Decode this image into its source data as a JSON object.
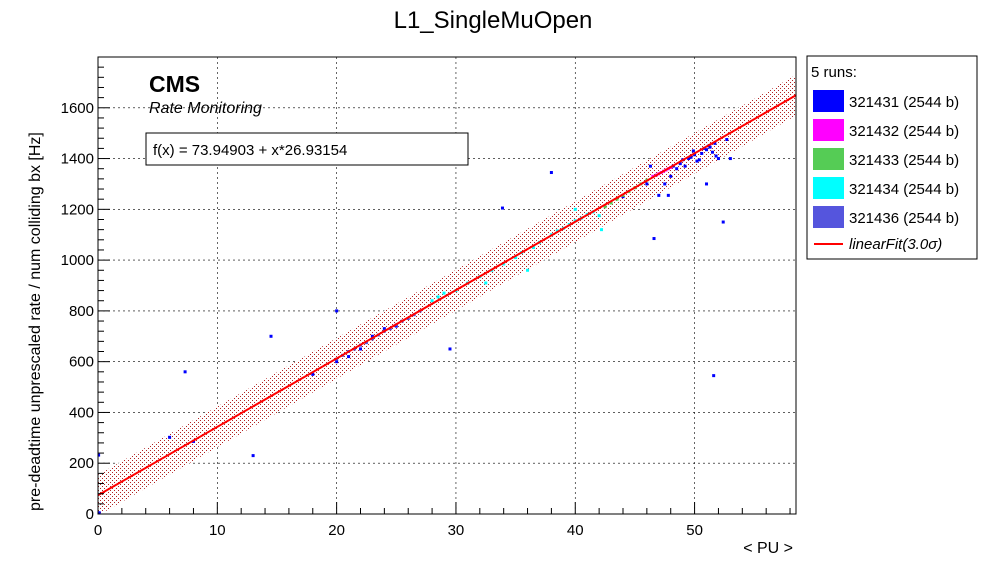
{
  "chart_data": {
    "type": "scatter",
    "title": "L1_SingleMuOpen",
    "xlabel": "< PU >",
    "ylabel": "pre-deadtime unprescaled rate / num colliding bx [Hz]",
    "xlim": [
      0,
      58.5
    ],
    "ylim": [
      0,
      1800
    ],
    "x_ticks": [
      0,
      10,
      20,
      30,
      40,
      50
    ],
    "y_ticks": [
      0,
      200,
      400,
      600,
      800,
      1000,
      1200,
      1400,
      1600
    ],
    "grid": true,
    "legend_position": "outside-right",
    "cms_label": "CMS",
    "cms_sublabel": "Rate Monitoring",
    "fit_box_text": "f(x) = 73.94903 + x*26.93154",
    "legend": {
      "header": "5 runs:",
      "fit_label_prefix": "linearFit(3.0",
      "fit_label_sigma": "σ",
      "fit_label_suffix": ")"
    },
    "fit": {
      "intercept": 73.94903,
      "slope": 26.93154,
      "band_halfwidth": 80,
      "color": "#ff0000",
      "band_color": "#b22222"
    },
    "series": [
      {
        "name": "321431 (2544 b)",
        "color": "#0000ff",
        "points": [
          [
            0.1,
            5
          ],
          [
            0.05,
            232
          ],
          [
            6.0,
            302
          ],
          [
            7.3,
            560
          ],
          [
            8.0,
            286
          ],
          [
            13.0,
            230
          ],
          [
            14.5,
            700
          ],
          [
            18.0,
            550
          ],
          [
            20.0,
            800
          ],
          [
            20.0,
            600
          ],
          [
            21.0,
            620
          ],
          [
            22.0,
            650
          ],
          [
            23.0,
            700
          ],
          [
            24.0,
            730
          ],
          [
            25.0,
            740
          ],
          [
            29.5,
            650
          ],
          [
            33.9,
            1205
          ],
          [
            38.0,
            1345
          ],
          [
            44.0,
            1250
          ],
          [
            46.0,
            1300
          ],
          [
            46.3,
            1370
          ],
          [
            46.6,
            1085
          ],
          [
            47.0,
            1255
          ],
          [
            47.5,
            1300
          ],
          [
            47.8,
            1255
          ],
          [
            48.0,
            1330
          ],
          [
            48.2,
            1370
          ],
          [
            48.5,
            1360
          ],
          [
            48.8,
            1380
          ],
          [
            49.0,
            1395
          ],
          [
            49.2,
            1370
          ],
          [
            49.5,
            1400
          ],
          [
            49.7,
            1405
          ],
          [
            49.9,
            1430
          ],
          [
            50.0,
            1415
          ],
          [
            50.2,
            1390
          ],
          [
            50.4,
            1395
          ],
          [
            50.6,
            1420
          ],
          [
            50.8,
            1440
          ],
          [
            51.0,
            1435
          ],
          [
            51.0,
            1300
          ],
          [
            51.2,
            1450
          ],
          [
            51.3,
            1445
          ],
          [
            51.5,
            1425
          ],
          [
            51.6,
            545
          ],
          [
            51.7,
            1460
          ],
          [
            51.8,
            1410
          ],
          [
            52.0,
            1400
          ],
          [
            52.4,
            1150
          ],
          [
            52.7,
            1475
          ],
          [
            53.0,
            1400
          ]
        ]
      },
      {
        "name": "321432 (2544 b)",
        "color": "#ff00ff",
        "points": [
          [
            46.5,
            1330
          ],
          [
            46.8,
            1335
          ],
          [
            47.0,
            1340
          ],
          [
            47.2,
            1345
          ],
          [
            47.4,
            1350
          ],
          [
            47.6,
            1355
          ],
          [
            47.8,
            1360
          ],
          [
            48.0,
            1365
          ]
        ]
      },
      {
        "name": "321433 (2544 b)",
        "color": "#55cc55",
        "points": [
          [
            42.5,
            1210
          ],
          [
            43.0,
            1225
          ],
          [
            43.5,
            1240
          ],
          [
            44.0,
            1255
          ],
          [
            44.5,
            1270
          ],
          [
            45.0,
            1285
          ],
          [
            45.5,
            1300
          ],
          [
            46.0,
            1315
          ]
        ]
      },
      {
        "name": "321434 (2544 b)",
        "color": "#00ffff",
        "points": [
          [
            28.0,
            840
          ],
          [
            28.5,
            855
          ],
          [
            29.0,
            870
          ],
          [
            30.0,
            880
          ],
          [
            31.0,
            910
          ],
          [
            32.0,
            935
          ],
          [
            32.5,
            910
          ],
          [
            33.0,
            960
          ],
          [
            34.0,
            985
          ],
          [
            35.0,
            1010
          ],
          [
            35.5,
            1030
          ],
          [
            36.0,
            960
          ],
          [
            36.5,
            1050
          ],
          [
            37.0,
            1070
          ],
          [
            38.0,
            1100
          ],
          [
            38.5,
            1115
          ],
          [
            39.0,
            1125
          ],
          [
            39.5,
            1140
          ],
          [
            40.0,
            1155
          ],
          [
            40.0,
            1200
          ],
          [
            40.5,
            1165
          ],
          [
            41.0,
            1180
          ],
          [
            41.5,
            1190
          ],
          [
            42.0,
            1175
          ],
          [
            42.2,
            1120
          ]
        ]
      },
      {
        "name": "321436 (2544 b)",
        "color": "#5555dd",
        "points": [
          [
            20.0,
            610
          ],
          [
            20.5,
            625
          ],
          [
            21.0,
            640
          ],
          [
            21.5,
            650
          ],
          [
            22.0,
            665
          ],
          [
            22.5,
            675
          ],
          [
            23.0,
            690
          ],
          [
            23.5,
            705
          ],
          [
            24.0,
            720
          ],
          [
            24.5,
            730
          ],
          [
            25.0,
            745
          ],
          [
            25.5,
            760
          ],
          [
            26.0,
            770
          ],
          [
            26.5,
            785
          ],
          [
            27.0,
            800
          ]
        ]
      }
    ]
  }
}
